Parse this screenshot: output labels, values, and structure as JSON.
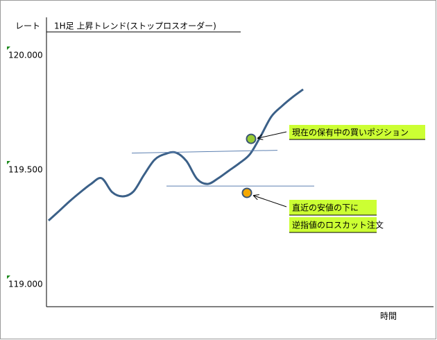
{
  "chart_data": {
    "type": "line",
    "title": "1H足 上昇トレンド(ストップロスオーダー)",
    "y_label": "レート",
    "x_label": "時間",
    "categories": [
      null,
      null,
      null,
      null,
      null,
      null,
      null,
      null,
      null,
      null,
      null,
      null,
      null,
      null,
      null,
      null,
      null,
      null,
      null,
      null,
      null,
      null,
      null,
      null,
      null
    ],
    "series": [
      {
        "color": "#3b6088",
        "values": [
          119.279,
          119.321,
          119.364,
          119.403,
          119.439,
          119.464,
          119.403,
          119.385,
          119.406,
          119.479,
          119.545,
          119.57,
          119.576,
          119.539,
          119.461,
          119.439,
          119.464,
          119.497,
          119.53,
          119.57,
          119.648,
          119.733,
          119.779,
          119.818,
          119.852
        ]
      }
    ],
    "levels": [
      {
        "value": 119.58,
        "color": "#5b7fb0"
      },
      {
        "value": 119.43,
        "color": "#5b7fb0"
      }
    ],
    "markers": [
      {
        "value": 119.636,
        "color": "#99cc33",
        "label": "現在の保有中の買いポジション"
      },
      {
        "value": 119.4,
        "color": "#f5a800",
        "label": [
          "直近の安値の下に",
          "逆指値のロスカット注文"
        ]
      }
    ],
    "annotation_color": "#ccff33",
    "ylim": [
      118.903,
      120.155
    ],
    "yticks": [
      {
        "value": 119,
        "label": "119.000"
      },
      {
        "value": 119.5,
        "label": "119.500"
      },
      {
        "value": 120,
        "label": "120.000"
      }
    ]
  }
}
